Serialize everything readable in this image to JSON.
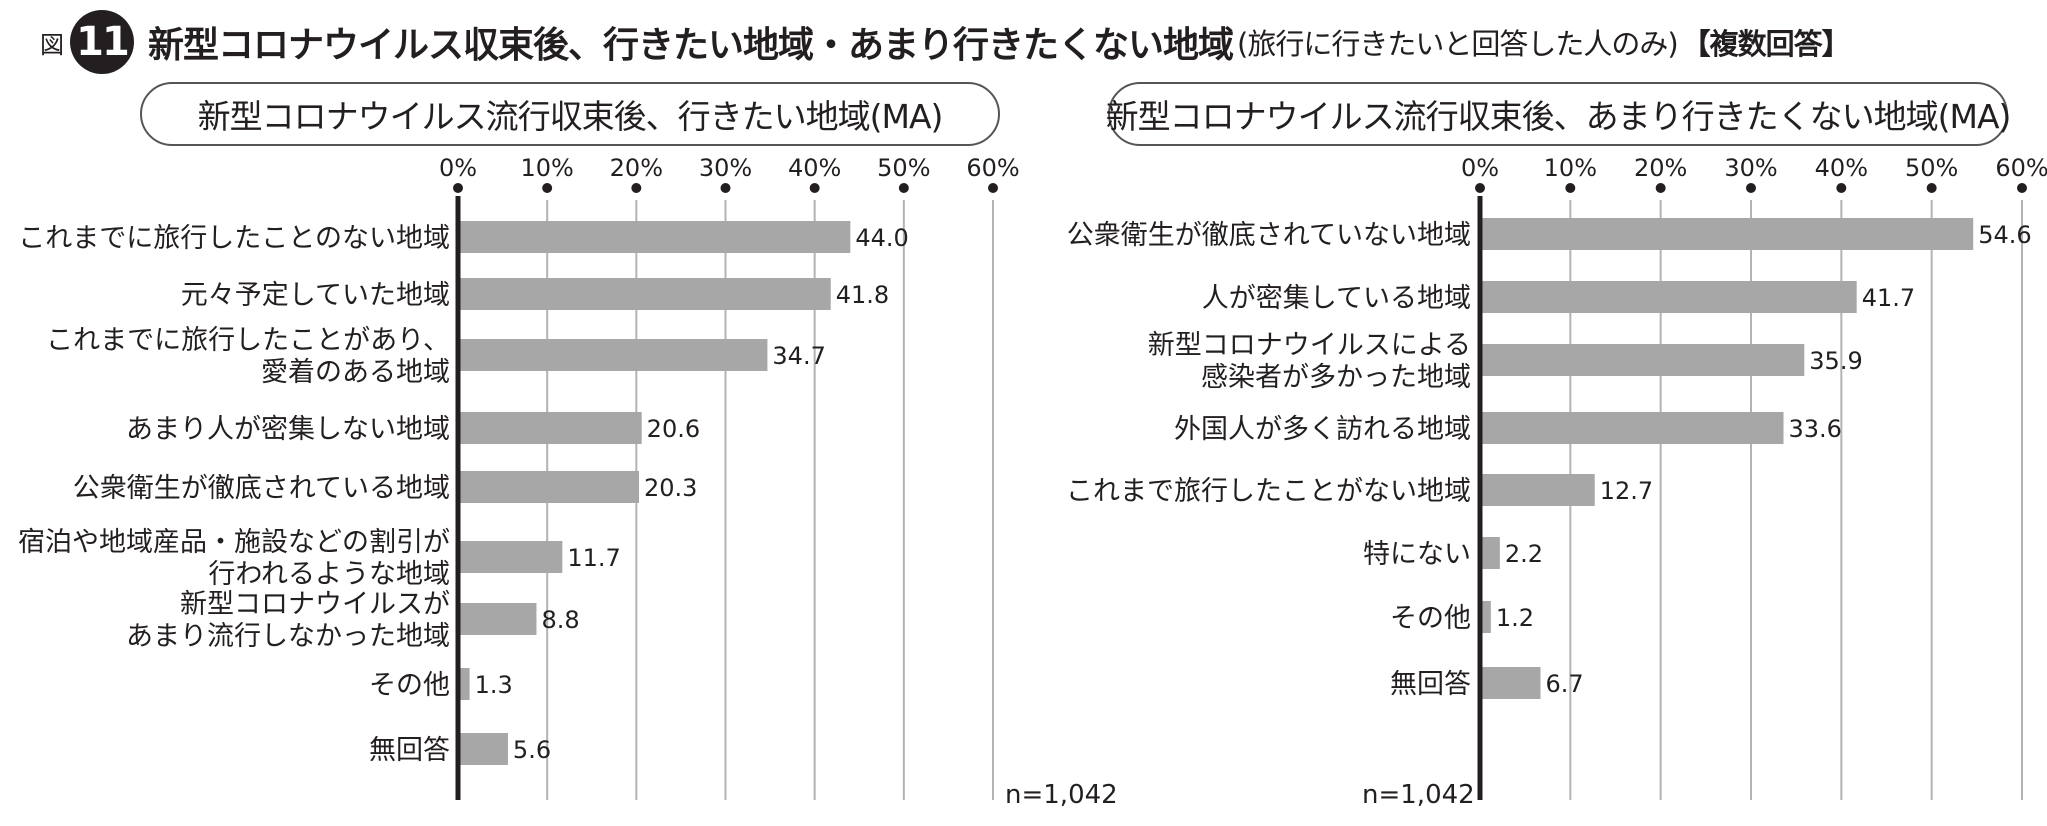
{
  "header": {
    "fig_word": "図",
    "fig_number": "11",
    "title": "新型コロナウイルス収束後、行きたい地域・あまり行きたくない地域",
    "note": "(旅行に行きたいと回答した人のみ)",
    "tag": "【複数回答】"
  },
  "colors": {
    "bar": "#a7a7a7",
    "axis": "#231f20",
    "grid": "#b3b3b3"
  },
  "chart_data": [
    {
      "type": "bar",
      "orientation": "horizontal",
      "title": "新型コロナウイルス流行収束後、行きたい地域(MA)",
      "xlim": [
        0,
        60
      ],
      "ticks": [
        "0%",
        "10%",
        "20%",
        "30%",
        "40%",
        "50%",
        "60%"
      ],
      "categories": [
        [
          "これまでに旅行したことのない地域"
        ],
        [
          "元々予定していた地域"
        ],
        [
          "これまでに旅行したことがあり、",
          "愛着のある地域"
        ],
        [
          "あまり人が密集しない地域"
        ],
        [
          "公衆衛生が徹底されている地域"
        ],
        [
          "宿泊や地域産品・施設などの割引が",
          "行われるような地域"
        ],
        [
          "新型コロナウイルスが",
          "あまり流行しなかった地域"
        ],
        [
          "その他"
        ],
        [
          "無回答"
        ]
      ],
      "values": [
        44.0,
        41.8,
        34.7,
        20.6,
        20.3,
        11.7,
        8.8,
        1.3,
        5.6
      ],
      "value_labels": [
        "44.0",
        "41.8",
        "34.7",
        "20.6",
        "20.3",
        "11.7",
        "8.8",
        "1.3",
        "5.6"
      ],
      "n": "n=1,042"
    },
    {
      "type": "bar",
      "orientation": "horizontal",
      "title": "新型コロナウイルス流行収束後、あまり行きたくない地域(MA)",
      "xlim": [
        0,
        60
      ],
      "ticks": [
        "0%",
        "10%",
        "20%",
        "30%",
        "40%",
        "50%",
        "60%"
      ],
      "categories": [
        [
          "公衆衛生が徹底されていない地域"
        ],
        [
          "人が密集している地域"
        ],
        [
          "新型コロナウイルスによる",
          "感染者が多かった地域"
        ],
        [
          "外国人が多く訪れる地域"
        ],
        [
          "これまで旅行したことがない地域"
        ],
        [
          "特にない"
        ],
        [
          "その他"
        ],
        [
          "無回答"
        ]
      ],
      "values": [
        54.6,
        41.7,
        35.9,
        33.6,
        12.7,
        2.2,
        1.2,
        6.7
      ],
      "value_labels": [
        "54.6",
        "41.7",
        "35.9",
        "33.6",
        "12.7",
        "2.2",
        "1.2",
        "6.7"
      ],
      "n": "n=1,042"
    }
  ]
}
